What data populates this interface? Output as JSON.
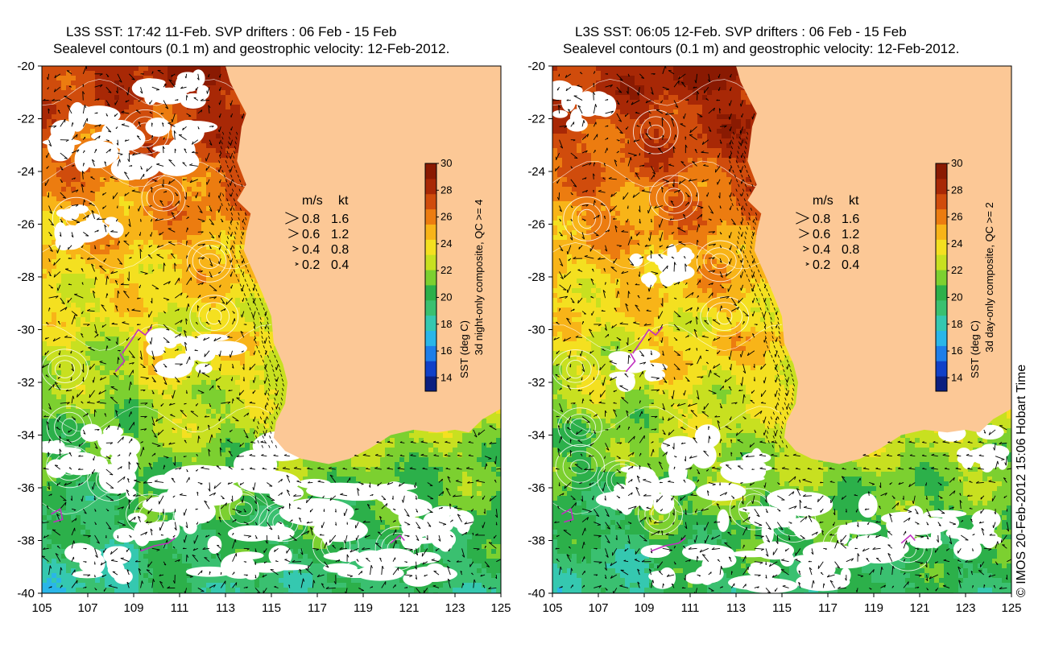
{
  "panels": [
    {
      "title_line1": "L3S SST: 17:42 11-Feb. SVP drifters : 06 Feb - 15 Feb",
      "title_line2": "Sealevel contours (0.1 m) and geostrophic velocity: 12-Feb-2012.",
      "colorbar_label": "SST (deg C)",
      "colorbar_sublabel": "3d night-only composite, QC >= 4",
      "composite": "night"
    },
    {
      "title_line1": "L3S SST: 06:05 12-Feb. SVP drifters : 06 Feb - 15 Feb",
      "title_line2": "Sealevel contours (0.1 m) and geostrophic velocity: 12-Feb-2012.",
      "colorbar_label": "SST (deg C)",
      "colorbar_sublabel": "3d day-only composite, QC >= 2",
      "composite": "day"
    }
  ],
  "axes": {
    "lon_range": [
      105,
      125
    ],
    "lat_range": [
      -40,
      -20
    ],
    "lon_ticks": [
      "105",
      "107",
      "109",
      "111",
      "113",
      "115",
      "117",
      "119",
      "121",
      "123",
      "125"
    ],
    "lat_ticks": [
      "-20",
      "-22",
      "-24",
      "-26",
      "-28",
      "-30",
      "-32",
      "-34",
      "-36",
      "-38",
      "-40"
    ]
  },
  "velocity_legend": {
    "header_ms": "m/s",
    "header_kt": "kt",
    "rows": [
      {
        "ms": "0.8",
        "kt": "1.6"
      },
      {
        "ms": "0.6",
        "kt": "1.2"
      },
      {
        "ms": "0.4",
        "kt": "0.8"
      },
      {
        "ms": "0.2",
        "kt": "0.4"
      }
    ]
  },
  "colorbar": {
    "range": [
      13,
      30
    ],
    "ticks": [
      "30",
      "28",
      "26",
      "24",
      "22",
      "20",
      "18",
      "16",
      "14"
    ],
    "colors": [
      "#0b1f80",
      "#1040c8",
      "#1e7ee8",
      "#2ab6e8",
      "#35c8b0",
      "#3ac070",
      "#2cb04a",
      "#7cd030",
      "#c8e020",
      "#f4e020",
      "#f8b418",
      "#ec7c10",
      "#d04c0c",
      "#a82806",
      "#8a1a02"
    ]
  },
  "colors": {
    "land": "#fcc896",
    "contour": "#ffffff",
    "arrow": "#000000",
    "drifter": "#c030c0"
  },
  "credit": "© IMOS 20-Feb-2012 15:06 Hobart Time"
}
